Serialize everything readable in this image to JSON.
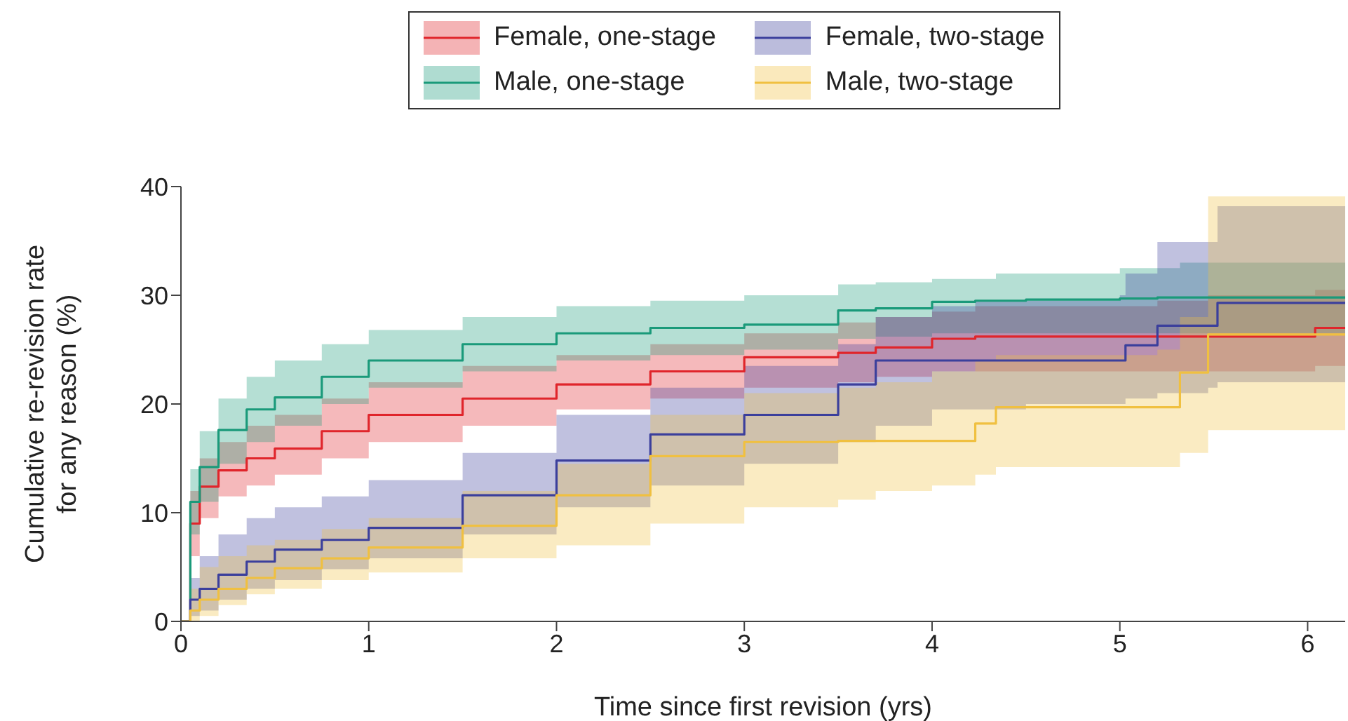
{
  "chart_data": {
    "type": "step",
    "xlabel": "Time since first revision (yrs)",
    "ylabel": "Cumulative re-revision rate\nfor any reason (%)",
    "x": [
      0,
      0.05,
      0.1,
      0.2,
      0.35,
      0.5,
      0.75,
      1,
      1.5,
      2,
      2.5,
      3,
      3.5,
      3.7,
      4,
      4.23,
      4.34,
      4.5,
      5,
      5.03,
      5.2,
      5.32,
      5.47,
      5.52,
      6,
      6.04,
      6.2
    ],
    "xlim": [
      0,
      6.2
    ],
    "xticks": [
      0,
      1,
      2,
      3,
      4,
      5,
      6
    ],
    "ylim": [
      0,
      40
    ],
    "yticks": [
      0,
      10,
      20,
      30,
      40
    ],
    "grid": false,
    "legend": "top",
    "line_style": "solid",
    "marker": "none",
    "series": [
      {
        "name": "Female, one-stage",
        "color": "#e0252b",
        "values": [
          0,
          9,
          12.4,
          13.9,
          15,
          15.9,
          17.5,
          19,
          20.5,
          21.8,
          23,
          24.3,
          24.7,
          25.2,
          26,
          26.2,
          26.2,
          26.2,
          26.2,
          26.2,
          26.2,
          26.2,
          26.2,
          26.2,
          26.2,
          27,
          27
        ],
        "lower": [
          0,
          6,
          9.5,
          11.5,
          12.5,
          13.5,
          15,
          16.5,
          18,
          19.5,
          20.5,
          21.5,
          22,
          22.5,
          23,
          23,
          23,
          23,
          23,
          23,
          23,
          23,
          23,
          23,
          23,
          23.5,
          23.5
        ],
        "upper": [
          0,
          12,
          15,
          16.5,
          18,
          19,
          20.5,
          22,
          23.5,
          24.5,
          25.5,
          26.5,
          27.5,
          28,
          28.5,
          29,
          29,
          29,
          29,
          29,
          29.5,
          29.5,
          30,
          30,
          30,
          30.5,
          30.5
        ]
      },
      {
        "name": "Male, one-stage",
        "color": "#1a9a7a",
        "values": [
          0,
          11,
          14.2,
          17.6,
          19.5,
          20.6,
          22.5,
          24,
          25.5,
          26.5,
          27,
          27.3,
          28.6,
          28.8,
          29.4,
          29.5,
          29.5,
          29.6,
          29.7,
          29.7,
          29.8,
          29.8,
          29.8,
          29.8,
          29.8,
          29.8,
          29.8
        ],
        "lower": [
          0,
          8,
          11,
          14.5,
          16.5,
          18,
          20,
          21.5,
          23,
          24,
          24.5,
          25,
          26,
          26.2,
          26.5,
          26.5,
          26.5,
          26.5,
          26.5,
          26.5,
          26.5,
          26.5,
          26.5,
          26.5,
          26.5,
          26.5,
          26.5
        ],
        "upper": [
          0,
          14,
          17.5,
          20.5,
          22.5,
          24,
          25.5,
          26.8,
          28,
          29,
          29.5,
          30,
          31,
          31.2,
          31.5,
          31.5,
          32,
          32,
          32.5,
          32.5,
          32.5,
          33,
          33,
          33,
          33,
          33,
          33
        ]
      },
      {
        "name": "Female, two-stage",
        "color": "#3b3f9c",
        "values": [
          0,
          2,
          3,
          4.3,
          5.5,
          6.6,
          7.5,
          8.6,
          11.6,
          14.8,
          17.2,
          19,
          21.8,
          24,
          24,
          24,
          24,
          24,
          24,
          25.4,
          27.2,
          27.2,
          27.2,
          29.3,
          29.3,
          29.3,
          29.3
        ],
        "lower": [
          0,
          0.5,
          1,
          2,
          3,
          3.8,
          4.8,
          5.8,
          8,
          10.5,
          12.5,
          14.5,
          16.5,
          18,
          19.5,
          19.5,
          19.5,
          20,
          20,
          20.5,
          21,
          21,
          21.5,
          22,
          22,
          22,
          22
        ],
        "upper": [
          0,
          4,
          6,
          8,
          9.5,
          10.5,
          11.5,
          13,
          15.5,
          19,
          21.5,
          23.5,
          25.5,
          28,
          29,
          29.5,
          29.5,
          29.5,
          30,
          32,
          34.9,
          34.9,
          34.9,
          38.2,
          38.2,
          38.2,
          38.2
        ]
      },
      {
        "name": "Male, two-stage",
        "color": "#f0c040",
        "values": [
          0,
          1,
          2,
          3,
          4,
          4.9,
          5.8,
          6.8,
          8.8,
          11.6,
          15.2,
          16.5,
          16.6,
          16.6,
          16.6,
          18.2,
          19.7,
          19.7,
          19.7,
          19.7,
          19.7,
          22.9,
          26.4,
          26.4,
          26.4,
          26.4,
          26.4
        ],
        "lower": [
          0,
          0,
          0.5,
          1.5,
          2.5,
          3,
          3.8,
          4.5,
          5.8,
          7,
          9,
          10.5,
          11.2,
          12,
          12.5,
          13.5,
          14.2,
          14.2,
          14.2,
          14.2,
          14.2,
          15.5,
          17.6,
          17.6,
          17.6,
          17.6,
          17.6
        ],
        "upper": [
          0,
          3,
          5,
          6,
          7,
          7.5,
          8.5,
          9.5,
          12,
          14.5,
          19,
          21,
          21.5,
          22,
          23,
          24,
          24.5,
          24.5,
          24.5,
          24.5,
          25,
          28,
          39.1,
          39.1,
          39.1,
          39.1,
          39.1
        ]
      }
    ]
  }
}
